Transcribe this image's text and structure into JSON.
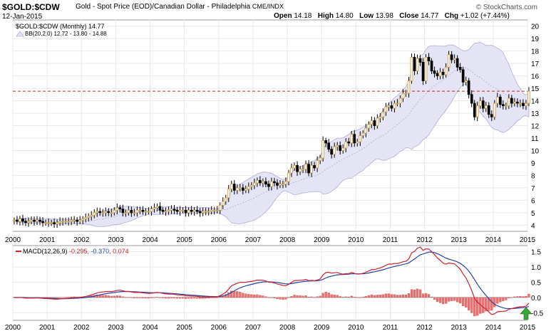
{
  "header": {
    "symbol": "$GOLD:$CDW",
    "description": "Gold - Spot Price (EOD)/Canadian Dollar - Philadelphia",
    "exchange": "CME/INDX",
    "date": "12-Jan-2015",
    "open_label": "Open",
    "open_value": "14.18",
    "high_label": "High",
    "high_value": "14.80",
    "low_label": "Low",
    "low_value": "13.98",
    "close_label": "Close",
    "close_value": "14.77",
    "chg_label": "Chg",
    "chg_value": "+1.02 (+7.44%)",
    "brand": "© StockCharts.com"
  },
  "colors": {
    "up_body": "#ffffff",
    "up_outline": "#c8a040",
    "down_body": "#000000",
    "band_fill": "#e4e4f4",
    "band_edge": "#b0b0d0",
    "refline": "#cc2222",
    "macd_line": "#cc2233",
    "signal_line": "#2244aa",
    "hist_fill": "#ee7070",
    "arrow": "#33aa33",
    "grid": "#e8e8e8"
  },
  "chart_data": [
    {
      "type": "candlestick",
      "title": "$GOLD:$CDW (Monthly) 14.77",
      "legend_main": "$GOLD:$CDW (Monthly) 14.77",
      "legend_bb": "BB(20,2.0) 12.72 - 13.80 - 14.88",
      "reference_line": 14.77,
      "ylim": [
        3.5,
        20.5
      ],
      "y_ticks": [
        4,
        5,
        6,
        7,
        8,
        9,
        10,
        11,
        12,
        13,
        14,
        15,
        16,
        17,
        18,
        19,
        20
      ],
      "x_ticks": [
        "2000",
        "2001",
        "2002",
        "2003",
        "2004",
        "2005",
        "2006",
        "2007",
        "2008",
        "2009",
        "2010",
        "2011",
        "2012",
        "2013",
        "2014",
        "2015"
      ],
      "closes_monthly_by_year": [
        {
          "year": 2000,
          "close": [
            4.4,
            4.3,
            4.5,
            4.3,
            4.2,
            4.3,
            4.4,
            4.3,
            4.4,
            4.3,
            4.2,
            4.2
          ]
        },
        {
          "year": 2001,
          "close": [
            4.2,
            4.2,
            4.1,
            4.2,
            4.3,
            4.3,
            4.3,
            4.3,
            4.4,
            4.4,
            4.3,
            4.4
          ]
        },
        {
          "year": 2002,
          "close": [
            4.5,
            4.6,
            4.7,
            4.8,
            5.0,
            5.1,
            5.0,
            5.0,
            5.1,
            5.0,
            5.0,
            5.2
          ]
        },
        {
          "year": 2003,
          "close": [
            5.4,
            5.3,
            5.0,
            5.0,
            5.2,
            5.0,
            5.0,
            5.2,
            5.2,
            5.1,
            5.1,
            5.1
          ]
        },
        {
          "year": 2004,
          "close": [
            5.3,
            5.4,
            5.5,
            5.2,
            5.1,
            5.1,
            5.2,
            5.3,
            5.2,
            5.1,
            5.2,
            5.2
          ]
        },
        {
          "year": 2005,
          "close": [
            5.0,
            5.2,
            5.1,
            5.2,
            5.1,
            5.0,
            5.1,
            5.1,
            5.1,
            5.2,
            5.2,
            5.2
          ]
        },
        {
          "year": 2006,
          "close": [
            5.6,
            5.9,
            6.2,
            6.9,
            7.3,
            6.8,
            7.0,
            7.0,
            6.8,
            6.9,
            7.1,
            7.2
          ]
        },
        {
          "year": 2007,
          "close": [
            7.4,
            7.6,
            7.4,
            7.5,
            7.3,
            7.1,
            7.5,
            7.4,
            7.2,
            7.3,
            7.3,
            7.5
          ]
        },
        {
          "year": 2008,
          "close": [
            8.2,
            8.6,
            8.8,
            8.3,
            8.5,
            8.5,
            8.9,
            8.2,
            8.8,
            8.6,
            9.2,
            9.4
          ]
        },
        {
          "year": 2009,
          "close": [
            10.8,
            10.6,
            10.1,
            9.7,
            10.3,
            10.4,
            10.0,
            10.2,
            10.7,
            10.6,
            11.3,
            10.6
          ]
        },
        {
          "year": 2010,
          "close": [
            10.7,
            11.2,
            11.4,
            11.8,
            12.1,
            12.4,
            12.0,
            12.6,
            12.7,
            13.1,
            13.5,
            13.6
          ]
        },
        {
          "year": 2011,
          "close": [
            13.4,
            13.8,
            13.8,
            14.2,
            14.6,
            14.6,
            15.6,
            17.5,
            16.4,
            17.4,
            17.1,
            15.6
          ]
        },
        {
          "year": 2012,
          "close": [
            17.5,
            17.2,
            16.4,
            16.2,
            16.0,
            16.3,
            16.1,
            16.7,
            17.7,
            17.3,
            17.4,
            16.7
          ]
        },
        {
          "year": 2013,
          "close": [
            16.5,
            15.5,
            15.6,
            14.5,
            13.8,
            12.7,
            13.6,
            14.0,
            13.4,
            13.6,
            12.9,
            12.7
          ]
        },
        {
          "year": 2014,
          "close": [
            13.8,
            14.3,
            13.7,
            13.6,
            13.6,
            14.2,
            13.8,
            13.9,
            13.8,
            13.8,
            13.6,
            13.8
          ]
        },
        {
          "year": 2015,
          "close": [
            14.77
          ]
        }
      ]
    },
    {
      "type": "line",
      "title": "MACD(12,26,9) -0.295, -0.370, 0.074",
      "legend_label": "MACD(12,26,9)",
      "legend_v1": "-0.295",
      "legend_v2": "-0.370",
      "legend_v3": "0.074",
      "ylim": [
        -0.75,
        1.7
      ],
      "y_ticks": [
        "1.5",
        "1.0",
        "0.5",
        "0.0",
        "-0.5"
      ],
      "x_ticks": [
        "2000",
        "2001",
        "2002",
        "2003",
        "2004",
        "2005",
        "2006",
        "2007",
        "2008",
        "2009",
        "2010",
        "2011",
        "2012",
        "2013",
        "2014",
        "2015"
      ],
      "series": [
        {
          "name": "MACD"
        },
        {
          "name": "Signal"
        },
        {
          "name": "Histogram"
        }
      ]
    }
  ]
}
